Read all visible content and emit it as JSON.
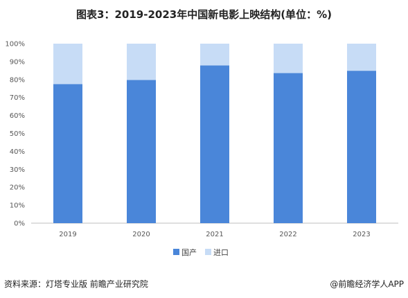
{
  "title": "图表3：2019-2023年中国新电影上映结构(单位：%)",
  "footer": {
    "source": "资料来源：灯塔专业版 前瞻产业研究院",
    "brand": "@前瞻经济学人APP"
  },
  "colors": {
    "domestic": "#4a86d9",
    "imported": "#c7dcf6",
    "axis": "#bfbfbf"
  },
  "chart_data": {
    "type": "bar",
    "stacked": true,
    "title": "图表3：2019-2023年中国新电影上映结构(单位：%)",
    "categories": [
      "2019",
      "2020",
      "2021",
      "2022",
      "2023"
    ],
    "series": [
      {
        "name": "国产",
        "values": [
          77.5,
          79.8,
          87.9,
          83.6,
          84.9
        ]
      },
      {
        "name": "进口",
        "values": [
          22.5,
          20.2,
          12.1,
          16.4,
          15.1
        ]
      }
    ],
    "ylim": [
      0,
      100
    ],
    "yticks": [
      "0%",
      "10%",
      "20%",
      "30%",
      "40%",
      "50%",
      "60%",
      "70%",
      "80%",
      "90%",
      "100%"
    ],
    "legend": "bottom",
    "grid": false
  }
}
